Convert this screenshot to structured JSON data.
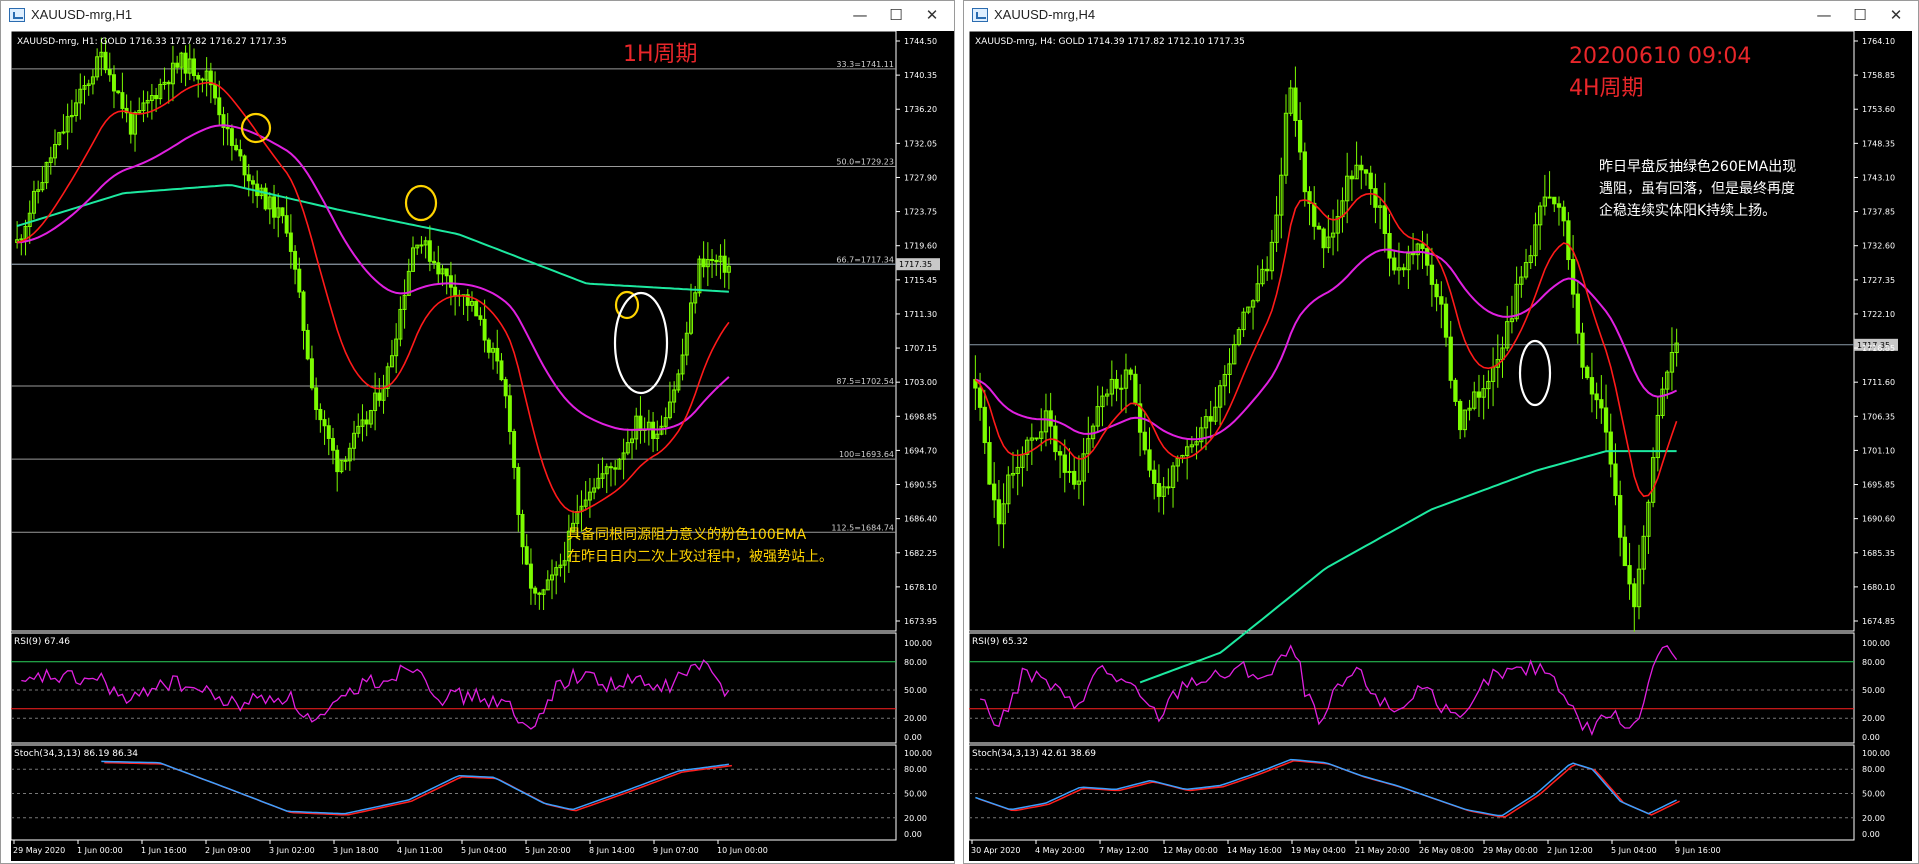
{
  "colors": {
    "background": "#000000",
    "candle": "#7cfc00",
    "ema_red": "#ff1a1a",
    "ema_pink": "#e020e0",
    "ema_green": "#1de9a0",
    "level_line": "#9a9a9a",
    "annotation_red": "#e8262a",
    "annotation_yellow": "#ffd400",
    "stoch_main": "#3aa0ff",
    "stoch_signal": "#ff2020"
  },
  "left": {
    "window_title": "XAUUSD-mrg,H1",
    "chart_info": "XAUUSD-mrg, H1:  GOLD   1716.33  1717.82  1716.27  1717.35",
    "period_label": "1H周期",
    "price_axis": [
      "1744.50",
      "1740.35",
      "1736.20",
      "1732.05",
      "1727.90",
      "1723.75",
      "1719.60",
      "1715.45",
      "1711.30",
      "1707.15",
      "1703.00",
      "1698.85",
      "1694.70",
      "1690.55",
      "1686.40",
      "1682.25",
      "1678.10",
      "1673.95"
    ],
    "current_price": "1717.35",
    "fib_levels": [
      "33.3=1741.11",
      "50.0=1729.23",
      "66.7=1717.34",
      "87.5=1702.54",
      "100=1693.64",
      "112.5=1684.74"
    ],
    "note_line1": "具备同根同源阻力意义的粉色100EMA",
    "note_line2": "在昨日日内二次上攻过程中，被强势站上。",
    "rsi_label": "RSI(9) 67.46",
    "rsi_axis": [
      "100.00",
      "80.00",
      "50.00",
      "20.00",
      "0.00"
    ],
    "stoch_label": "Stoch(34,3,13) 86.19 86.34",
    "stoch_axis": [
      "100.00",
      "80.00",
      "50.00",
      "20.00",
      "0.00"
    ],
    "time_axis": [
      "29 May 2020",
      "1 Jun 00:00",
      "1 Jun 16:00",
      "2 Jun 09:00",
      "3 Jun 02:00",
      "3 Jun 18:00",
      "4 Jun 11:00",
      "5 Jun 04:00",
      "5 Jun 20:00",
      "8 Jun 14:00",
      "9 Jun 07:00",
      "10 Jun 00:00"
    ]
  },
  "right": {
    "window_title": "XAUUSD-mrg,H4",
    "chart_info": "XAUUSD-mrg, H4:  GOLD   1714.39  1717.82  1712.10  1717.35",
    "date_label": "20200610 09:04",
    "period_label": "4H周期",
    "note_line1": "昨日早盘反抽绿色260EMA出现",
    "note_line2": "遇阻，虽有回落，但是最终再度",
    "note_line3": "企稳连续实体阳K持续上扬。",
    "price_axis": [
      "1764.10",
      "1758.85",
      "1753.60",
      "1748.35",
      "1743.10",
      "1737.85",
      "1732.60",
      "1727.35",
      "1722.10",
      "1716.85",
      "1711.60",
      "1706.35",
      "1701.10",
      "1695.85",
      "1690.60",
      "1685.35",
      "1680.10",
      "1674.85"
    ],
    "current_price": "1717.35",
    "rsi_label": "RSI(9) 65.32",
    "rsi_axis": [
      "100.00",
      "80.00",
      "50.00",
      "20.00",
      "0.00"
    ],
    "stoch_label": "Stoch(34,3,13) 42.61 38.69",
    "stoch_axis": [
      "100.00",
      "80.00",
      "50.00",
      "20.00",
      "0.00"
    ],
    "time_axis": [
      "30 Apr 2020",
      "4 May 20:00",
      "7 May 12:00",
      "12 May 00:00",
      "14 May 16:00",
      "19 May 04:00",
      "21 May 20:00",
      "26 May 08:00",
      "29 May 00:00",
      "2 Jun 12:00",
      "5 Jun 04:00",
      "9 Jun 16:00"
    ]
  },
  "window_controls": {
    "minimize": "—",
    "maximize": "☐",
    "close": "✕"
  }
}
